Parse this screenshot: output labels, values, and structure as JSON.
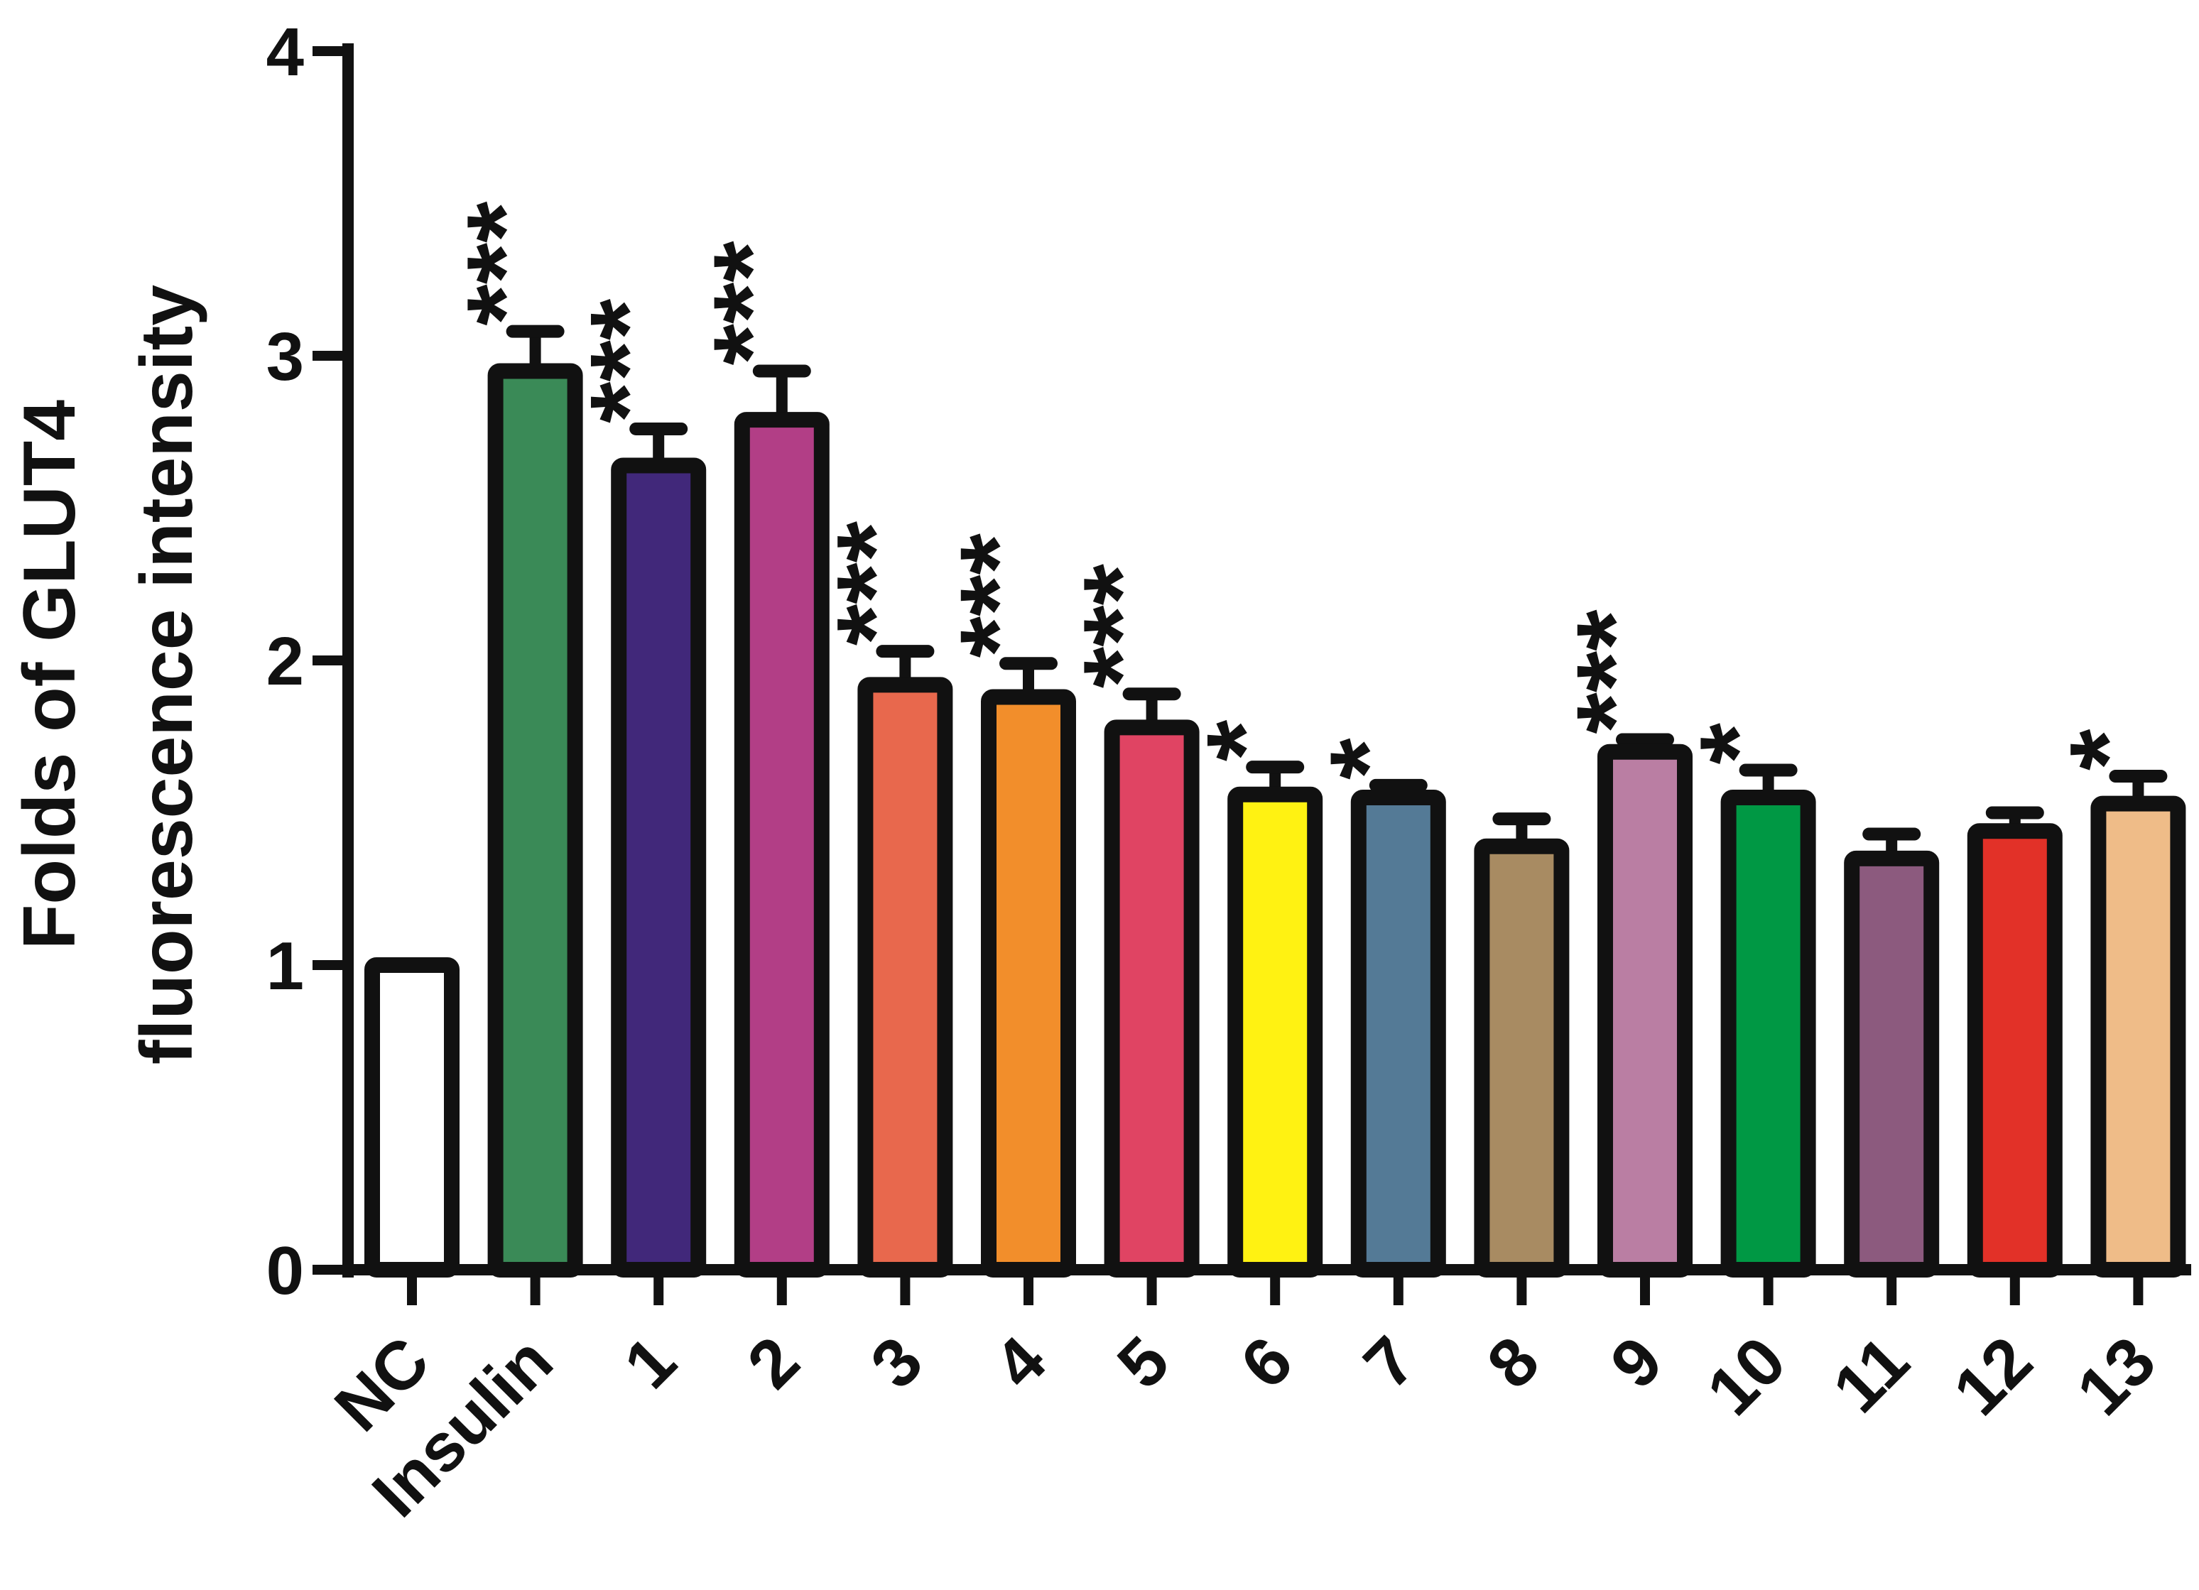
{
  "chart_data": {
    "type": "bar",
    "title": "",
    "xlabel": "",
    "ylabel": [
      "Folds of GLUT4",
      "fluorescence intensity"
    ],
    "ylim": [
      0,
      4
    ],
    "yticks": [
      "0",
      "1",
      "2",
      "3",
      "4"
    ],
    "categories": [
      "NC",
      "Insulin",
      "1",
      "2",
      "3",
      "4",
      "5",
      "6",
      "7",
      "8",
      "9",
      "10",
      "11",
      "12",
      "13"
    ],
    "values": [
      1.0,
      2.95,
      2.64,
      2.79,
      1.92,
      1.88,
      1.78,
      1.56,
      1.55,
      1.39,
      1.7,
      1.55,
      1.35,
      1.44,
      1.53
    ],
    "errors": [
      0.0,
      0.13,
      0.12,
      0.16,
      0.11,
      0.11,
      0.11,
      0.09,
      0.04,
      0.09,
      0.04,
      0.09,
      0.08,
      0.06,
      0.09
    ],
    "significance": [
      "",
      "***",
      "***",
      "***",
      "***",
      "***",
      "***",
      "*",
      "*",
      "",
      "***",
      "*",
      "",
      "",
      "*"
    ],
    "colors": [
      "#ffffff",
      "#3a8a57",
      "#41287a",
      "#b23e86",
      "#e8684d",
      "#f28e2b",
      "#e04463",
      "#fff212",
      "#547a96",
      "#a88b62",
      "#ba7ea3",
      "#009844",
      "#8c5a7e",
      "#e23128",
      "#efbc88"
    ],
    "grid": false,
    "legend": "none"
  }
}
